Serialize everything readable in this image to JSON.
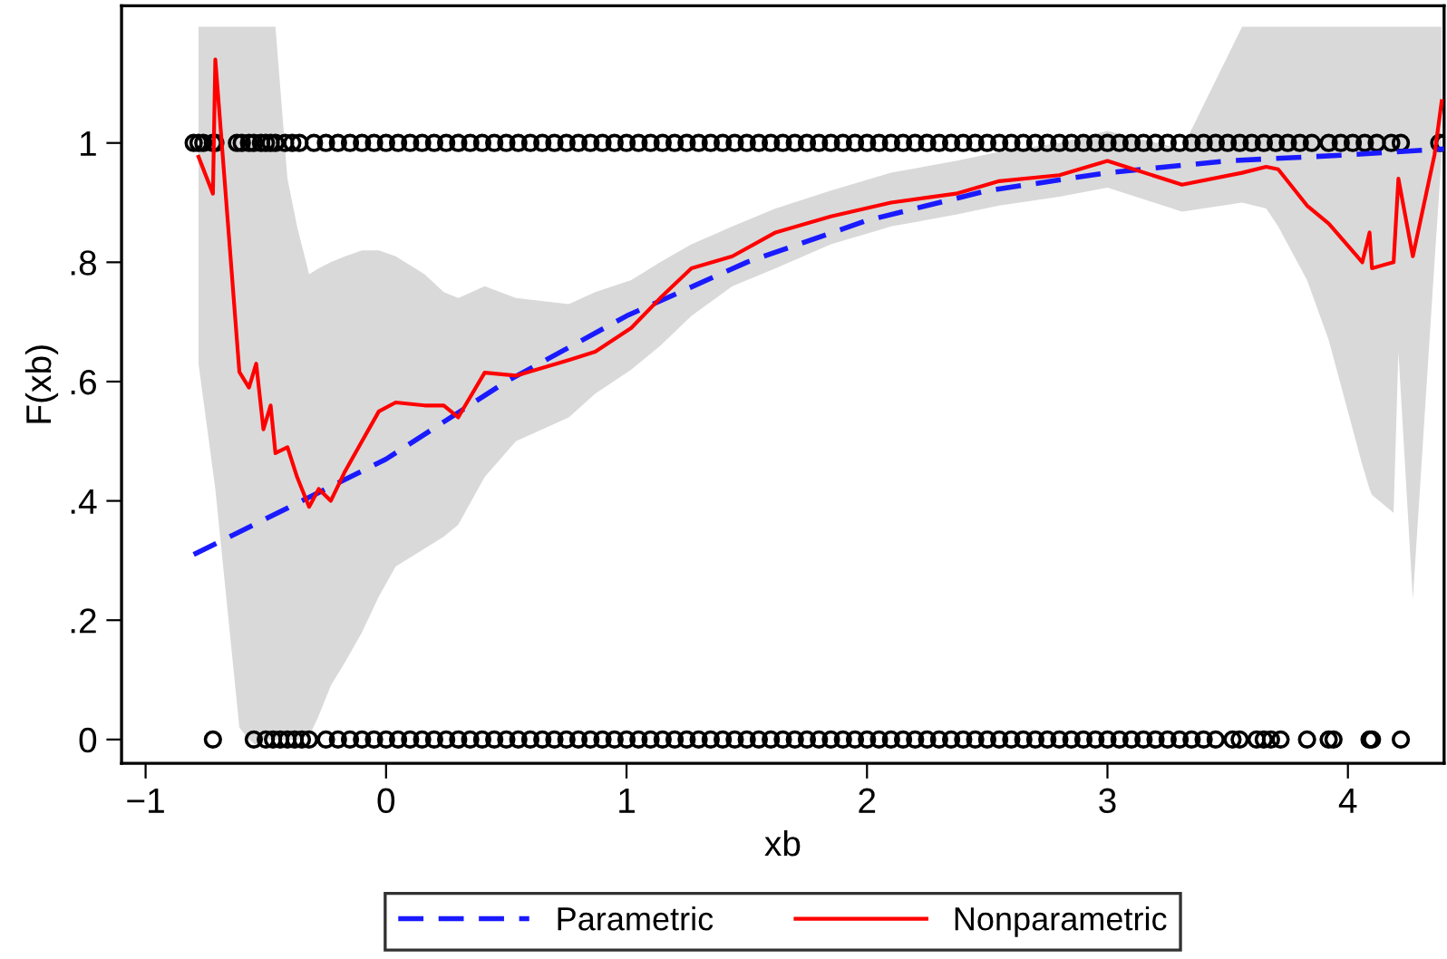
{
  "chart_data": {
    "type": "line",
    "xlabel": "xb",
    "ylabel": "F(xb)",
    "xlim": [
      -1.1,
      4.4
    ],
    "ylim": [
      -0.04,
      1.23
    ],
    "xticks": [
      {
        "value": -1,
        "label": "−1"
      },
      0,
      1,
      2,
      3,
      4
    ],
    "yticks": [
      0,
      {
        "value": 0.2,
        "label": ".2"
      },
      {
        "value": 0.4,
        "label": ".4"
      },
      {
        "value": 0.6,
        "label": ".6"
      },
      {
        "value": 0.8,
        "label": ".8"
      },
      1
    ],
    "grid": false,
    "legend": "bottom",
    "series": [
      {
        "type": "scatter",
        "color": "#000000",
        "marker": "circle",
        "x": [
          -0.8,
          -0.78,
          -0.76,
          -0.72,
          -0.71,
          -0.62,
          -0.6,
          -0.57,
          -0.55,
          -0.52,
          -0.5,
          -0.48,
          -0.46,
          -0.42,
          -0.39,
          -0.36,
          -0.3,
          -0.25,
          -0.2,
          -0.15,
          -0.1,
          -0.05,
          0.0,
          0.05,
          0.1,
          0.15,
          0.2,
          0.25,
          0.3,
          0.35,
          0.4,
          0.45,
          0.5,
          0.55,
          0.6,
          0.65,
          0.7,
          0.75,
          0.8,
          0.85,
          0.9,
          0.95,
          1.0,
          1.05,
          1.1,
          1.15,
          1.2,
          1.25,
          1.3,
          1.35,
          1.4,
          1.45,
          1.5,
          1.55,
          1.6,
          1.65,
          1.7,
          1.75,
          1.8,
          1.85,
          1.9,
          1.95,
          2.0,
          2.05,
          2.1,
          2.15,
          2.2,
          2.25,
          2.3,
          2.35,
          2.4,
          2.45,
          2.5,
          2.55,
          2.6,
          2.65,
          2.7,
          2.75,
          2.8,
          2.85,
          2.9,
          2.95,
          3.0,
          3.05,
          3.1,
          3.15,
          3.2,
          3.25,
          3.3,
          3.35,
          3.4,
          3.45,
          3.5,
          3.55,
          3.6,
          3.65,
          3.7,
          3.75,
          3.8,
          3.85,
          3.92,
          3.97,
          4.02,
          4.07,
          4.12,
          4.18,
          4.22,
          4.38,
          4.4,
          -0.72,
          -0.55,
          -0.5,
          -0.47,
          -0.44,
          -0.41,
          -0.38,
          -0.35,
          -0.32,
          -0.25,
          -0.2,
          -0.15,
          -0.1,
          -0.05,
          0.0,
          0.05,
          0.1,
          0.15,
          0.2,
          0.25,
          0.3,
          0.35,
          0.4,
          0.45,
          0.5,
          0.55,
          0.6,
          0.65,
          0.7,
          0.75,
          0.8,
          0.85,
          0.9,
          0.95,
          1.0,
          1.05,
          1.1,
          1.15,
          1.2,
          1.25,
          1.3,
          1.35,
          1.4,
          1.45,
          1.5,
          1.55,
          1.6,
          1.65,
          1.7,
          1.75,
          1.8,
          1.85,
          1.9,
          1.95,
          2.0,
          2.05,
          2.1,
          2.15,
          2.2,
          2.25,
          2.3,
          2.35,
          2.4,
          2.45,
          2.5,
          2.55,
          2.6,
          2.65,
          2.7,
          2.75,
          2.8,
          2.85,
          2.9,
          2.95,
          3.0,
          3.05,
          3.1,
          3.15,
          3.2,
          3.25,
          3.3,
          3.35,
          3.4,
          3.45,
          3.52,
          3.55,
          3.62,
          3.65,
          3.68,
          3.72,
          3.83,
          3.92,
          3.94,
          4.09,
          4.1,
          4.22
        ],
        "values": [
          1,
          1,
          1,
          1,
          1,
          1,
          1,
          1,
          1,
          1,
          1,
          1,
          1,
          1,
          1,
          1,
          1,
          1,
          1,
          1,
          1,
          1,
          1,
          1,
          1,
          1,
          1,
          1,
          1,
          1,
          1,
          1,
          1,
          1,
          1,
          1,
          1,
          1,
          1,
          1,
          1,
          1,
          1,
          1,
          1,
          1,
          1,
          1,
          1,
          1,
          1,
          1,
          1,
          1,
          1,
          1,
          1,
          1,
          1,
          1,
          1,
          1,
          1,
          1,
          1,
          1,
          1,
          1,
          1,
          1,
          1,
          1,
          1,
          1,
          1,
          1,
          1,
          1,
          1,
          1,
          1,
          1,
          1,
          1,
          1,
          1,
          1,
          1,
          1,
          1,
          1,
          1,
          1,
          1,
          1,
          1,
          1,
          1,
          1,
          1,
          1,
          1,
          1,
          1,
          1,
          1,
          1,
          1,
          1,
          0,
          0,
          0,
          0,
          0,
          0,
          0,
          0,
          0,
          0,
          0,
          0,
          0,
          0,
          0,
          0,
          0,
          0,
          0,
          0,
          0,
          0,
          0,
          0,
          0,
          0,
          0,
          0,
          0,
          0,
          0,
          0,
          0,
          0,
          0,
          0,
          0,
          0,
          0,
          0,
          0,
          0,
          0,
          0,
          0,
          0,
          0,
          0,
          0,
          0,
          0,
          0,
          0,
          0,
          0,
          0,
          0,
          0,
          0,
          0,
          0,
          0,
          0,
          0,
          0,
          0,
          0,
          0,
          0,
          0,
          0,
          0,
          0,
          0,
          0,
          0,
          0,
          0,
          0,
          0,
          0,
          0,
          0,
          0,
          0,
          0,
          0,
          0,
          0,
          0,
          0,
          0,
          0,
          0,
          0,
          0
        ]
      },
      {
        "name": "Parametric",
        "color": "#1a1aff",
        "line_style": "dashed",
        "marker": "none",
        "x": [
          -0.8,
          -0.5,
          0,
          0.5,
          1,
          1.5,
          2,
          2.5,
          3,
          3.5,
          4,
          4.4
        ],
        "values": [
          0.31,
          0.37,
          0.47,
          0.6,
          0.71,
          0.8,
          0.87,
          0.92,
          0.95,
          0.97,
          0.98,
          0.99
        ]
      },
      {
        "name": "Nonparametric",
        "color": "#ff0000",
        "line_style": "solid",
        "marker": "none",
        "x": [
          -0.78,
          -0.72,
          -0.71,
          -0.61,
          -0.57,
          -0.54,
          -0.51,
          -0.48,
          -0.46,
          -0.41,
          -0.37,
          -0.32,
          -0.28,
          -0.23,
          -0.17,
          -0.1,
          -0.03,
          0.04,
          0.16,
          0.24,
          0.3,
          0.41,
          0.54,
          0.76,
          0.87,
          1.02,
          1.14,
          1.27,
          1.44,
          1.62,
          1.85,
          2.1,
          2.37,
          2.55,
          2.8,
          3.0,
          3.31,
          3.56,
          3.66,
          3.71,
          3.83,
          3.92,
          4.06,
          4.09,
          4.1,
          4.19,
          4.21,
          4.27,
          4.36,
          4.39
        ],
        "values": [
          0.977,
          0.915,
          1.14,
          0.616,
          0.59,
          0.63,
          0.52,
          0.56,
          0.48,
          0.49,
          0.44,
          0.39,
          0.42,
          0.4,
          0.45,
          0.5,
          0.55,
          0.565,
          0.56,
          0.56,
          0.54,
          0.615,
          0.61,
          0.636,
          0.65,
          0.69,
          0.74,
          0.79,
          0.81,
          0.85,
          0.877,
          0.9,
          0.915,
          0.936,
          0.946,
          0.97,
          0.93,
          0.95,
          0.96,
          0.956,
          0.895,
          0.865,
          0.8,
          0.85,
          0.79,
          0.8,
          0.94,
          0.81,
          0.98,
          1.07
        ],
        "upper": [
          1.195,
          1.195,
          1.195,
          1.195,
          1.195,
          1.195,
          1.195,
          1.195,
          1.195,
          0.94,
          0.86,
          0.78,
          0.79,
          0.8,
          0.81,
          0.82,
          0.82,
          0.81,
          0.78,
          0.75,
          0.74,
          0.76,
          0.74,
          0.73,
          0.75,
          0.77,
          0.8,
          0.83,
          0.86,
          0.89,
          0.92,
          0.95,
          0.97,
          0.985,
          1.0,
          1.02,
          0.99,
          1.195,
          1.195,
          1.195,
          1.195,
          1.195,
          1.195,
          1.195,
          1.195,
          1.195,
          1.195,
          1.195,
          1.195,
          1.195
        ],
        "lower": [
          0.63,
          0.45,
          0.42,
          0.02,
          0.0,
          -0.01,
          0.0,
          0.0,
          0.0,
          0.0,
          0.0,
          0.005,
          0.04,
          0.09,
          0.13,
          0.18,
          0.24,
          0.29,
          0.32,
          0.34,
          0.36,
          0.44,
          0.5,
          0.54,
          0.58,
          0.62,
          0.66,
          0.71,
          0.76,
          0.79,
          0.83,
          0.86,
          0.88,
          0.895,
          0.91,
          0.925,
          0.885,
          0.9,
          0.89,
          0.86,
          0.77,
          0.67,
          0.46,
          0.42,
          0.41,
          0.38,
          0.65,
          0.235,
          0.8,
          0.98
        ]
      }
    ]
  }
}
